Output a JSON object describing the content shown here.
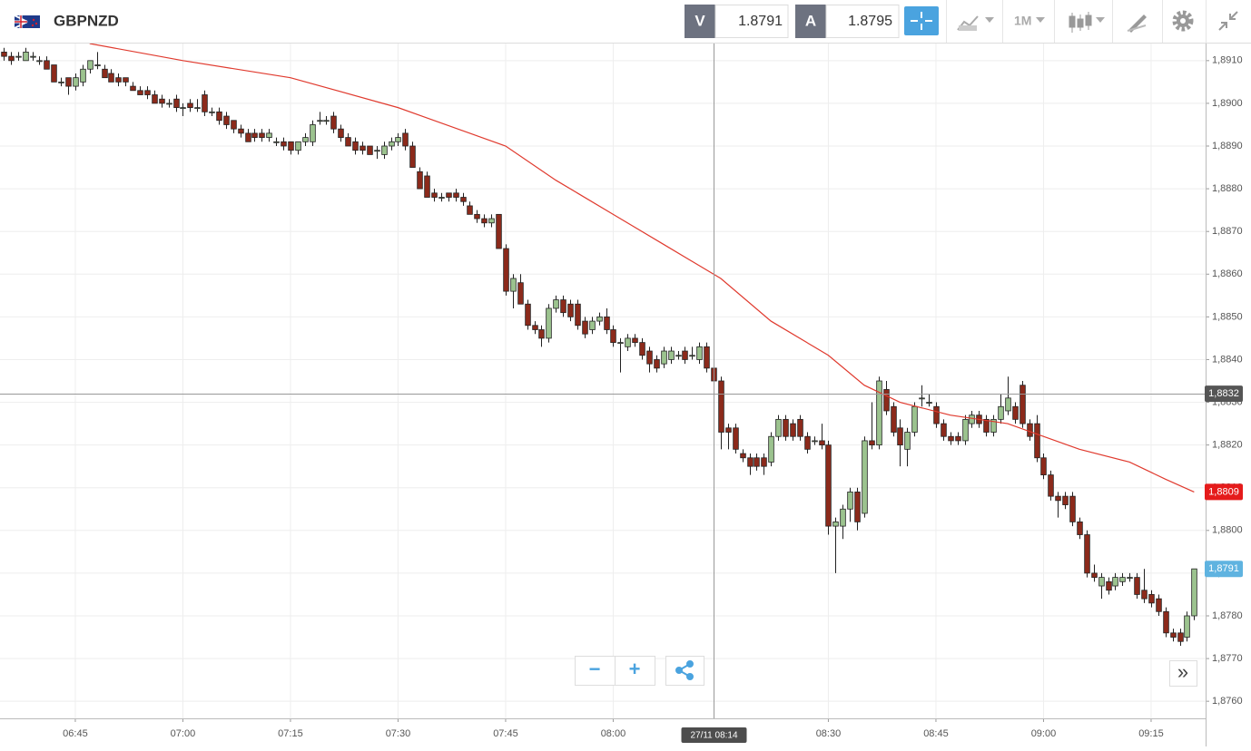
{
  "toolbar": {
    "instrument": "GBPNZD",
    "sell_label": "V",
    "sell_price": "1.8791",
    "buy_label": "A",
    "buy_price": "1.8795",
    "timeframe": "1M"
  },
  "controls": {
    "zoom_out": "−",
    "zoom_in": "+",
    "scroll_end": "»"
  },
  "chart_data": {
    "type": "candlestick",
    "up_color": "#9cc38f",
    "down_color": "#8c2a1b",
    "xlim": [
      -0.5,
      167.6
    ],
    "ylim": [
      1.8756,
      1.8914
    ],
    "categories": [
      null,
      null,
      null,
      null,
      null,
      null,
      null,
      null,
      null,
      null,
      "06:45",
      null,
      null,
      null,
      null,
      null,
      null,
      null,
      null,
      null,
      null,
      null,
      null,
      null,
      null,
      "07:00",
      null,
      null,
      null,
      null,
      null,
      null,
      null,
      null,
      null,
      null,
      null,
      null,
      null,
      null,
      "07:15",
      null,
      null,
      null,
      null,
      null,
      null,
      null,
      null,
      null,
      null,
      null,
      null,
      null,
      null,
      "07:30",
      null,
      null,
      null,
      null,
      null,
      null,
      null,
      null,
      null,
      null,
      null,
      null,
      null,
      null,
      "07:45",
      null,
      null,
      null,
      null,
      null,
      null,
      null,
      null,
      null,
      null,
      null,
      null,
      null,
      null,
      "08:00",
      null,
      null,
      null,
      null,
      null,
      null,
      null,
      null,
      null,
      null,
      null,
      null,
      null,
      null,
      null,
      null,
      null,
      null,
      null,
      null,
      null,
      null,
      null,
      null,
      null,
      null,
      null,
      null,
      null,
      "08:30",
      null,
      null,
      null,
      null,
      null,
      null,
      null,
      null,
      null,
      null,
      null,
      null,
      null,
      null,
      "08:45",
      null,
      null,
      null,
      null,
      null,
      null,
      null,
      null,
      null,
      null,
      null,
      null,
      null,
      null,
      "09:00",
      null,
      null,
      null,
      null,
      null,
      null,
      null,
      null,
      null,
      null,
      null,
      null,
      null,
      null,
      "09:15",
      null,
      null,
      null,
      null,
      null,
      null
    ],
    "candles": [
      [
        1.8912,
        1.8913,
        1.891,
        1.8911
      ],
      [
        1.8911,
        1.8912,
        1.8909,
        1.891
      ],
      [
        1.8911,
        1.8912,
        1.891,
        1.8911
      ],
      [
        1.891,
        1.8913,
        1.891,
        1.8912
      ],
      [
        1.8911,
        1.8912,
        1.891,
        1.8911
      ],
      [
        1.891,
        1.8911,
        1.8909,
        1.891
      ],
      [
        1.891,
        1.8911,
        1.8908,
        1.8908
      ],
      [
        1.8909,
        1.8909,
        1.8905,
        1.8905
      ],
      [
        1.8905,
        1.8906,
        1.8904,
        1.8905
      ],
      [
        1.8906,
        1.8906,
        1.8902,
        1.8904
      ],
      [
        1.8904,
        1.8907,
        1.8903,
        1.8906
      ],
      [
        1.8905,
        1.8909,
        1.8904,
        1.8908
      ],
      [
        1.8908,
        1.891,
        1.8907,
        1.891
      ],
      [
        1.8909,
        1.8912,
        1.8908,
        1.8909
      ],
      [
        1.8908,
        1.8909,
        1.8906,
        1.8906
      ],
      [
        1.8907,
        1.8908,
        1.8905,
        1.8905
      ],
      [
        1.8906,
        1.8907,
        1.8904,
        1.8905
      ],
      [
        1.8906,
        1.8906,
        1.8904,
        1.8905
      ],
      [
        1.8904,
        1.8905,
        1.8903,
        1.8903
      ],
      [
        1.8903,
        1.8904,
        1.8902,
        1.8902
      ],
      [
        1.8903,
        1.8904,
        1.8901,
        1.8902
      ],
      [
        1.8902,
        1.8903,
        1.89,
        1.89
      ],
      [
        1.8901,
        1.8902,
        1.8899,
        1.89
      ],
      [
        1.89,
        1.8901,
        1.8899,
        1.89
      ],
      [
        1.8901,
        1.8902,
        1.8898,
        1.8899
      ],
      [
        1.8899,
        1.89,
        1.8897,
        1.8899
      ],
      [
        1.89,
        1.8901,
        1.8898,
        1.8899
      ],
      [
        1.8899,
        1.8901,
        1.8898,
        1.8899
      ],
      [
        1.8902,
        1.8903,
        1.8897,
        1.8898
      ],
      [
        1.8898,
        1.8899,
        1.8897,
        1.8898
      ],
      [
        1.8898,
        1.8899,
        1.8895,
        1.8896
      ],
      [
        1.8897,
        1.8898,
        1.8894,
        1.8895
      ],
      [
        1.8896,
        1.8896,
        1.8893,
        1.8894
      ],
      [
        1.8894,
        1.8895,
        1.8892,
        1.8893
      ],
      [
        1.8893,
        1.8894,
        1.8891,
        1.8891
      ],
      [
        1.8893,
        1.8894,
        1.8891,
        1.8892
      ],
      [
        1.8893,
        1.8894,
        1.8891,
        1.8892
      ],
      [
        1.8892,
        1.8894,
        1.8891,
        1.8893
      ],
      [
        1.8891,
        1.8892,
        1.889,
        1.8891
      ],
      [
        1.8891,
        1.8892,
        1.8889,
        1.889
      ],
      [
        1.8891,
        1.8891,
        1.8888,
        1.8889
      ],
      [
        1.8889,
        1.8891,
        1.8888,
        1.8891
      ],
      [
        1.8891,
        1.8893,
        1.889,
        1.8892
      ],
      [
        1.8891,
        1.8896,
        1.889,
        1.8895
      ],
      [
        1.8896,
        1.8898,
        1.8895,
        1.8896
      ],
      [
        1.8896,
        1.8897,
        1.8895,
        1.8896
      ],
      [
        1.8897,
        1.8898,
        1.8893,
        1.8894
      ],
      [
        1.8894,
        1.8895,
        1.8891,
        1.8892
      ],
      [
        1.8892,
        1.8893,
        1.889,
        1.889
      ],
      [
        1.8891,
        1.8892,
        1.8888,
        1.8889
      ],
      [
        1.889,
        1.8891,
        1.8888,
        1.8889
      ],
      [
        1.889,
        1.889,
        1.8888,
        1.8888
      ],
      [
        1.8889,
        1.889,
        1.8887,
        1.8889
      ],
      [
        1.8888,
        1.8891,
        1.8887,
        1.889
      ],
      [
        1.889,
        1.8892,
        1.8889,
        1.8891
      ],
      [
        1.8891,
        1.8893,
        1.889,
        1.8892
      ],
      [
        1.8893,
        1.8894,
        1.8889,
        1.889
      ],
      [
        1.889,
        1.8891,
        1.8885,
        1.8885
      ],
      [
        1.8884,
        1.8885,
        1.888,
        1.888
      ],
      [
        1.8883,
        1.8884,
        1.8878,
        1.8878
      ],
      [
        1.8879,
        1.888,
        1.8877,
        1.8878
      ],
      [
        1.8878,
        1.8879,
        1.8877,
        1.8878
      ],
      [
        1.8879,
        1.8879,
        1.8877,
        1.8878
      ],
      [
        1.8879,
        1.888,
        1.8877,
        1.8878
      ],
      [
        1.8878,
        1.8879,
        1.8876,
        1.8877
      ],
      [
        1.8876,
        1.8877,
        1.8874,
        1.8874
      ],
      [
        1.8874,
        1.8875,
        1.8872,
        1.8873
      ],
      [
        1.8873,
        1.8874,
        1.8871,
        1.8872
      ],
      [
        1.8872,
        1.8874,
        1.8871,
        1.8873
      ],
      [
        1.8874,
        1.8874,
        1.8866,
        1.8866
      ],
      [
        1.8866,
        1.8867,
        1.8855,
        1.8856
      ],
      [
        1.8856,
        1.886,
        1.8852,
        1.8859
      ],
      [
        1.8858,
        1.886,
        1.8853,
        1.8853
      ],
      [
        1.8853,
        1.8854,
        1.8847,
        1.8848
      ],
      [
        1.8848,
        1.8849,
        1.8846,
        1.8847
      ],
      [
        1.8847,
        1.8848,
        1.8843,
        1.8845
      ],
      [
        1.8845,
        1.8853,
        1.8844,
        1.8852
      ],
      [
        1.8852,
        1.8855,
        1.8851,
        1.8854
      ],
      [
        1.8854,
        1.8855,
        1.885,
        1.8851
      ],
      [
        1.8853,
        1.8854,
        1.8849,
        1.885
      ],
      [
        1.8853,
        1.8854,
        1.8847,
        1.8848
      ],
      [
        1.8849,
        1.885,
        1.8845,
        1.8846
      ],
      [
        1.8847,
        1.885,
        1.8846,
        1.8849
      ],
      [
        1.8849,
        1.8851,
        1.8848,
        1.885
      ],
      [
        1.885,
        1.8852,
        1.8846,
        1.8847
      ],
      [
        1.8847,
        1.8848,
        1.8843,
        1.8844
      ],
      [
        1.8844,
        1.8845,
        1.8837,
        1.8844
      ],
      [
        1.8843,
        1.8846,
        1.8842,
        1.8845
      ],
      [
        1.8845,
        1.8846,
        1.8843,
        1.8844
      ],
      [
        1.8844,
        1.8845,
        1.884,
        1.8841
      ],
      [
        1.8842,
        1.8843,
        1.8837,
        1.8839
      ],
      [
        1.884,
        1.8841,
        1.8837,
        1.8838
      ],
      [
        1.8839,
        1.8843,
        1.8838,
        1.8842
      ],
      [
        1.884,
        1.8843,
        1.8839,
        1.8842
      ],
      [
        1.8841,
        1.8842,
        1.884,
        1.8841
      ],
      [
        1.8842,
        1.8843,
        1.8839,
        1.884
      ],
      [
        1.8841,
        1.8843,
        1.884,
        1.8841
      ],
      [
        1.884,
        1.8844,
        1.8839,
        1.8843
      ],
      [
        1.8843,
        1.8844,
        1.8837,
        1.8838
      ],
      [
        1.8838,
        1.8839,
        1.8834,
        1.8835
      ],
      [
        1.8835,
        1.8836,
        1.8819,
        1.8823
      ],
      [
        1.8824,
        1.8825,
        1.8819,
        1.8823
      ],
      [
        1.8824,
        1.8825,
        1.8818,
        1.8819
      ],
      [
        1.8818,
        1.8819,
        1.8816,
        1.8817
      ],
      [
        1.8817,
        1.8818,
        1.8813,
        1.8815
      ],
      [
        1.8817,
        1.8818,
        1.8814,
        1.8815
      ],
      [
        1.8817,
        1.8818,
        1.8813,
        1.8815
      ],
      [
        1.8816,
        1.8823,
        1.8815,
        1.8822
      ],
      [
        1.8822,
        1.8827,
        1.8821,
        1.8826
      ],
      [
        1.8826,
        1.8827,
        1.8821,
        1.8822
      ],
      [
        1.8825,
        1.8826,
        1.8821,
        1.8822
      ],
      [
        1.8826,
        1.8827,
        1.8821,
        1.8822
      ],
      [
        1.8822,
        1.8823,
        1.8818,
        1.8819
      ],
      [
        1.8821,
        1.8822,
        1.882,
        1.8821
      ],
      [
        1.8821,
        1.8825,
        1.8819,
        1.882
      ],
      [
        1.882,
        1.8821,
        1.8799,
        1.8801
      ],
      [
        1.8801,
        1.8803,
        1.879,
        1.8802
      ],
      [
        1.8801,
        1.8806,
        1.8798,
        1.8805
      ],
      [
        1.8805,
        1.881,
        1.8802,
        1.8809
      ],
      [
        1.8809,
        1.881,
        1.88,
        1.8802
      ],
      [
        1.8804,
        1.8822,
        1.8803,
        1.8821
      ],
      [
        1.8821,
        1.883,
        1.8819,
        1.882
      ],
      [
        1.882,
        1.8836,
        1.8819,
        1.8835
      ],
      [
        1.8833,
        1.8835,
        1.8827,
        1.8828
      ],
      [
        1.8829,
        1.883,
        1.8822,
        1.8823
      ],
      [
        1.8824,
        1.8826,
        1.8815,
        1.882
      ],
      [
        1.8819,
        1.8824,
        1.8815,
        1.8823
      ],
      [
        1.8823,
        1.883,
        1.8822,
        1.8829
      ],
      [
        1.8831,
        1.8834,
        1.8829,
        1.8831
      ],
      [
        1.883,
        1.8832,
        1.8829,
        1.883
      ],
      [
        1.8829,
        1.883,
        1.8824,
        1.8825
      ],
      [
        1.8825,
        1.8826,
        1.8821,
        1.8822
      ],
      [
        1.8822,
        1.8823,
        1.882,
        1.8821
      ],
      [
        1.8822,
        1.8823,
        1.882,
        1.8821
      ],
      [
        1.8821,
        1.8827,
        1.882,
        1.8826
      ],
      [
        1.8825,
        1.8828,
        1.8824,
        1.8827
      ],
      [
        1.8827,
        1.8828,
        1.8824,
        1.8825
      ],
      [
        1.8826,
        1.8827,
        1.8822,
        1.8823
      ],
      [
        1.8823,
        1.8827,
        1.8822,
        1.8826
      ],
      [
        1.8826,
        1.8832,
        1.8825,
        1.8829
      ],
      [
        1.8828,
        1.8836,
        1.8827,
        1.8831
      ],
      [
        1.8829,
        1.883,
        1.8825,
        1.8826
      ],
      [
        1.8834,
        1.8835,
        1.8824,
        1.8825
      ],
      [
        1.8825,
        1.8826,
        1.8821,
        1.8822
      ],
      [
        1.8825,
        1.8827,
        1.8816,
        1.8817
      ],
      [
        1.8817,
        1.8818,
        1.8812,
        1.8813
      ],
      [
        1.8813,
        1.8814,
        1.8807,
        1.8808
      ],
      [
        1.8808,
        1.8809,
        1.8803,
        1.8807
      ],
      [
        1.8808,
        1.8809,
        1.8805,
        1.8806
      ],
      [
        1.8808,
        1.8809,
        1.8801,
        1.8802
      ],
      [
        1.8802,
        1.8803,
        1.8798,
        1.8799
      ],
      [
        1.8799,
        1.88,
        1.8789,
        1.879
      ],
      [
        1.879,
        1.8792,
        1.8788,
        1.8789
      ],
      [
        1.8787,
        1.879,
        1.8784,
        1.8789
      ],
      [
        1.8788,
        1.8789,
        1.8785,
        1.8786
      ],
      [
        1.8787,
        1.879,
        1.8786,
        1.8789
      ],
      [
        1.8788,
        1.879,
        1.8787,
        1.8789
      ],
      [
        1.8789,
        1.879,
        1.8788,
        1.8789
      ],
      [
        1.8789,
        1.879,
        1.8784,
        1.8785
      ],
      [
        1.8786,
        1.8791,
        1.8783,
        1.8784
      ],
      [
        1.8785,
        1.8786,
        1.8782,
        1.8783
      ],
      [
        1.8784,
        1.8785,
        1.878,
        1.8781
      ],
      [
        1.8781,
        1.8782,
        1.8775,
        1.8776
      ],
      [
        1.8776,
        1.8777,
        1.8774,
        1.8775
      ],
      [
        1.8776,
        1.8777,
        1.8773,
        1.8774
      ],
      [
        1.8775,
        1.8781,
        1.8774,
        1.878
      ],
      [
        1.878,
        1.8791,
        1.8779,
        1.8791
      ]
    ],
    "moving_average": {
      "color": "#e03a2e",
      "x": [
        12,
        25,
        40,
        55,
        70,
        77,
        85,
        92,
        100,
        107,
        115,
        120,
        125,
        132,
        140,
        145,
        150,
        157,
        162,
        166
      ],
      "values": [
        1.8914,
        1.891,
        1.8906,
        1.8899,
        1.889,
        1.8882,
        1.8874,
        1.8867,
        1.8859,
        1.8849,
        1.8841,
        1.8834,
        1.883,
        1.8827,
        1.8825,
        1.8822,
        1.8819,
        1.8816,
        1.8812,
        1.8809
      ]
    },
    "yticks": [
      {
        "value": 1.876,
        "label": "1,8760"
      },
      {
        "value": 1.877,
        "label": "1,8770"
      },
      {
        "value": 1.878,
        "label": "1,8780"
      },
      {
        "value": 1.879,
        "label": "1,8790"
      },
      {
        "value": 1.88,
        "label": "1,8800"
      },
      {
        "value": 1.881,
        "label": "1,8810"
      },
      {
        "value": 1.882,
        "label": "1,8820"
      },
      {
        "value": 1.883,
        "label": "1,8830"
      },
      {
        "value": 1.884,
        "label": "1,8840"
      },
      {
        "value": 1.885,
        "label": "1,8850"
      },
      {
        "value": 1.886,
        "label": "1,8860"
      },
      {
        "value": 1.887,
        "label": "1,8870"
      },
      {
        "value": 1.888,
        "label": "1,8880"
      },
      {
        "value": 1.889,
        "label": "1,8890"
      },
      {
        "value": 1.89,
        "label": "1,8900"
      },
      {
        "value": 1.891,
        "label": "1,8910"
      }
    ],
    "grid": true,
    "crosshair": {
      "x": 99,
      "x_label": "27/11 08:14",
      "y": {
        "value": 1.8832,
        "label": "1,8832"
      }
    },
    "price_tags": [
      {
        "value": 1.8809,
        "label": "1,8809",
        "color": "#e51b1b"
      },
      {
        "value": 1.8791,
        "label": "1,8791",
        "color": "#5fb3e0"
      }
    ]
  }
}
